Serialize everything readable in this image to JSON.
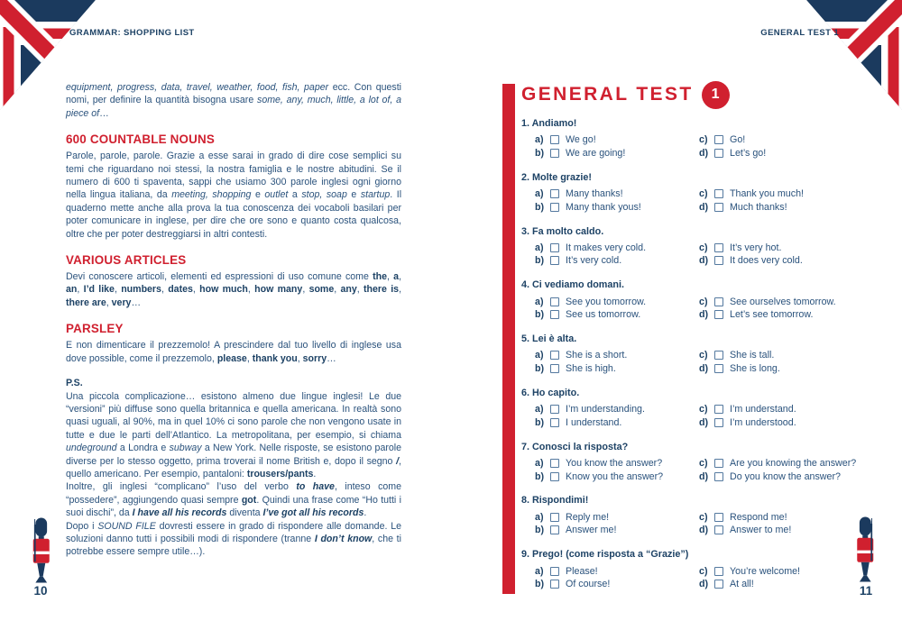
{
  "colors": {
    "accent_red": "#d0202f",
    "navy": "#1b3a5e",
    "body_text": "#2a527c",
    "checkbox_border": "#54799f"
  },
  "left_page": {
    "header": "GRAMMAR: SHOPPING LIST",
    "page_number": "10",
    "illustration": "queens-guard",
    "sections": [
      {
        "heading": null,
        "heading_style": null,
        "paragraphs": [
          [
            {
              "t": "equipment, progress, data, travel, weather, food, fish, paper",
              "s": "i"
            },
            {
              "t": " ecc. Con questi nomi, per definire la quantità bisogna usare ",
              "s": ""
            },
            {
              "t": "some, any, much, little, a lot of, a piece of",
              "s": "i"
            },
            {
              "t": "…",
              "s": ""
            }
          ]
        ]
      },
      {
        "heading": "600 COUNTABLE NOUNS",
        "heading_style": "red",
        "paragraphs": [
          [
            {
              "t": "Parole, parole, parole. Grazie a esse sarai in grado di dire cose semplici su temi che riguardano noi stessi, la nostra famiglia e le nostre abitudini. Se il numero di 600 ti spaventa, sappi che usiamo 300 parole inglesi ogni giorno nella lingua italiana, da ",
              "s": ""
            },
            {
              "t": "meeting, shopping",
              "s": "i"
            },
            {
              "t": " e ",
              "s": ""
            },
            {
              "t": "outlet",
              "s": "i"
            },
            {
              "t": " a ",
              "s": ""
            },
            {
              "t": "stop, soap",
              "s": "i"
            },
            {
              "t": " e ",
              "s": ""
            },
            {
              "t": "startup",
              "s": "i"
            },
            {
              "t": ". Il quaderno mette anche alla prova la tua conoscenza dei vocaboli basilari per poter comunicare in inglese, per dire che ore sono e quanto costa qualcosa, oltre che per poter destreggiarsi in altri contesti.",
              "s": ""
            }
          ]
        ]
      },
      {
        "heading": "VARIOUS ARTICLES",
        "heading_style": "red",
        "paragraphs": [
          [
            {
              "t": "Devi conoscere articoli, elementi ed espressioni di uso comune come ",
              "s": ""
            },
            {
              "t": "the",
              "s": "b"
            },
            {
              "t": ", ",
              "s": ""
            },
            {
              "t": "a",
              "s": "b"
            },
            {
              "t": ", ",
              "s": ""
            },
            {
              "t": "an",
              "s": "b"
            },
            {
              "t": ", ",
              "s": ""
            },
            {
              "t": "I’d like",
              "s": "b"
            },
            {
              "t": ", ",
              "s": ""
            },
            {
              "t": "numbers",
              "s": "b"
            },
            {
              "t": ", ",
              "s": ""
            },
            {
              "t": "dates",
              "s": "b"
            },
            {
              "t": ", ",
              "s": ""
            },
            {
              "t": "how much",
              "s": "b"
            },
            {
              "t": ", ",
              "s": ""
            },
            {
              "t": "how many",
              "s": "b"
            },
            {
              "t": ", ",
              "s": ""
            },
            {
              "t": "some",
              "s": "b"
            },
            {
              "t": ", ",
              "s": ""
            },
            {
              "t": "any",
              "s": "b"
            },
            {
              "t": ", ",
              "s": ""
            },
            {
              "t": "there is",
              "s": "b"
            },
            {
              "t": ", ",
              "s": ""
            },
            {
              "t": "there are",
              "s": "b"
            },
            {
              "t": ", ",
              "s": ""
            },
            {
              "t": "very",
              "s": "b"
            },
            {
              "t": "…",
              "s": ""
            }
          ]
        ]
      },
      {
        "heading": "PARSLEY",
        "heading_style": "red",
        "paragraphs": [
          [
            {
              "t": "E non dimenticare il prezzemolo! A prescindere dal tuo livello di inglese usa dove possible, come il prezzemolo, ",
              "s": ""
            },
            {
              "t": "please",
              "s": "b"
            },
            {
              "t": ", ",
              "s": ""
            },
            {
              "t": "thank you",
              "s": "b"
            },
            {
              "t": ", ",
              "s": ""
            },
            {
              "t": "sorry",
              "s": "b"
            },
            {
              "t": "…",
              "s": ""
            }
          ]
        ]
      },
      {
        "heading": "P.S.",
        "heading_style": "plain",
        "paragraphs": [
          [
            {
              "t": "Una piccola complicazione… esistono almeno due lingue inglesi! Le due “versioni” più diffuse sono quella britannica e quella americana. In realtà sono quasi uguali, al 90%, ma in quel 10% ci sono parole che non vengono usate in tutte e due le parti dell’Atlantico. La metropolitana, per esempio, si chiama ",
              "s": ""
            },
            {
              "t": "undeground",
              "s": "i"
            },
            {
              "t": " a Londra e ",
              "s": ""
            },
            {
              "t": "subway",
              "s": "i"
            },
            {
              "t": " a New York. Nelle risposte, se esistono parole diverse per lo stesso oggetto, prima troverai il nome British e, dopo il segno ",
              "s": ""
            },
            {
              "t": "/",
              "s": "bi"
            },
            {
              "t": ", quello americano. Per esempio, pantaloni: ",
              "s": ""
            },
            {
              "t": "trousers/pants",
              "s": "b"
            },
            {
              "t": ".",
              "s": ""
            }
          ],
          [
            {
              "t": "Inoltre, gli inglesi “complicano” l’uso del verbo ",
              "s": ""
            },
            {
              "t": "to have",
              "s": "bi"
            },
            {
              "t": ", inteso come “possedere”, aggiungendo quasi sempre ",
              "s": ""
            },
            {
              "t": "got",
              "s": "b"
            },
            {
              "t": ". Quindi una frase come “Ho tutti i suoi dischi”, da ",
              "s": ""
            },
            {
              "t": "I have all his records",
              "s": "bi"
            },
            {
              "t": " diventa ",
              "s": ""
            },
            {
              "t": "I’ve got all his records",
              "s": "bi"
            },
            {
              "t": ".",
              "s": ""
            }
          ],
          [
            {
              "t": "Dopo i ",
              "s": ""
            },
            {
              "t": "SOUND FILE",
              "s": "i"
            },
            {
              "t": " dovresti essere in grado di rispondere alle domande. Le soluzioni danno tutti i possibili modi di rispondere (tranne ",
              "s": ""
            },
            {
              "t": "I don’t know",
              "s": "bi"
            },
            {
              "t": ", che ti potrebbe essere sempre utile…).",
              "s": ""
            }
          ]
        ]
      }
    ]
  },
  "right_page": {
    "header": "GENERAL TEST 1",
    "page_number": "11",
    "illustration": "queens-guard",
    "title": "GENERAL TEST",
    "badge": "1",
    "questions": [
      {
        "number": "1.",
        "prompt": "Andiamo!",
        "options": [
          {
            "letter": "a)",
            "label": "We go!"
          },
          {
            "letter": "b)",
            "label": "We are going!"
          },
          {
            "letter": "c)",
            "label": "Go!"
          },
          {
            "letter": "d)",
            "label": "Let’s go!"
          }
        ]
      },
      {
        "number": "2.",
        "prompt": "Molte grazie!",
        "options": [
          {
            "letter": "a)",
            "label": "Many thanks!"
          },
          {
            "letter": "b)",
            "label": "Many thank yous!"
          },
          {
            "letter": "c)",
            "label": "Thank you much!"
          },
          {
            "letter": "d)",
            "label": "Much thanks!"
          }
        ]
      },
      {
        "number": "3.",
        "prompt": "Fa molto caldo.",
        "options": [
          {
            "letter": "a)",
            "label": "It makes very cold."
          },
          {
            "letter": "b)",
            "label": "It’s very cold."
          },
          {
            "letter": "c)",
            "label": "It’s very hot."
          },
          {
            "letter": "d)",
            "label": "It does very cold."
          }
        ]
      },
      {
        "number": "4.",
        "prompt": "Ci vediamo domani.",
        "options": [
          {
            "letter": "a)",
            "label": "See you tomorrow."
          },
          {
            "letter": "b)",
            "label": "See us tomorrow."
          },
          {
            "letter": "c)",
            "label": "See ourselves tomorrow."
          },
          {
            "letter": "d)",
            "label": "Let’s see tomorrow."
          }
        ]
      },
      {
        "number": "5.",
        "prompt": "Lei è alta.",
        "options": [
          {
            "letter": "a)",
            "label": "She is a short."
          },
          {
            "letter": "b)",
            "label": "She is high."
          },
          {
            "letter": "c)",
            "label": "She is tall."
          },
          {
            "letter": "d)",
            "label": "She is long."
          }
        ]
      },
      {
        "number": "6.",
        "prompt": "Ho capito.",
        "options": [
          {
            "letter": "a)",
            "label": "I’m understanding."
          },
          {
            "letter": "b)",
            "label": "I understand."
          },
          {
            "letter": "c)",
            "label": "I’m understand."
          },
          {
            "letter": "d)",
            "label": "I’m understood."
          }
        ]
      },
      {
        "number": "7.",
        "prompt": "Conosci la risposta?",
        "options": [
          {
            "letter": "a)",
            "label": "You know the answer?"
          },
          {
            "letter": "b)",
            "label": "Know you the answer?"
          },
          {
            "letter": "c)",
            "label": "Are you knowing the answer?"
          },
          {
            "letter": "d)",
            "label": "Do you know the answer?"
          }
        ]
      },
      {
        "number": "8.",
        "prompt": "Rispondimi!",
        "options": [
          {
            "letter": "a)",
            "label": "Reply me!"
          },
          {
            "letter": "b)",
            "label": "Answer me!"
          },
          {
            "letter": "c)",
            "label": "Respond me!"
          },
          {
            "letter": "d)",
            "label": "Answer to me!"
          }
        ]
      },
      {
        "number": "9.",
        "prompt": "Prego! (come risposta a “Grazie”)",
        "options": [
          {
            "letter": "a)",
            "label": "Please!"
          },
          {
            "letter": "b)",
            "label": "Of course!"
          },
          {
            "letter": "c)",
            "label": "You’re welcome!"
          },
          {
            "letter": "d)",
            "label": "At all!"
          }
        ]
      }
    ]
  }
}
